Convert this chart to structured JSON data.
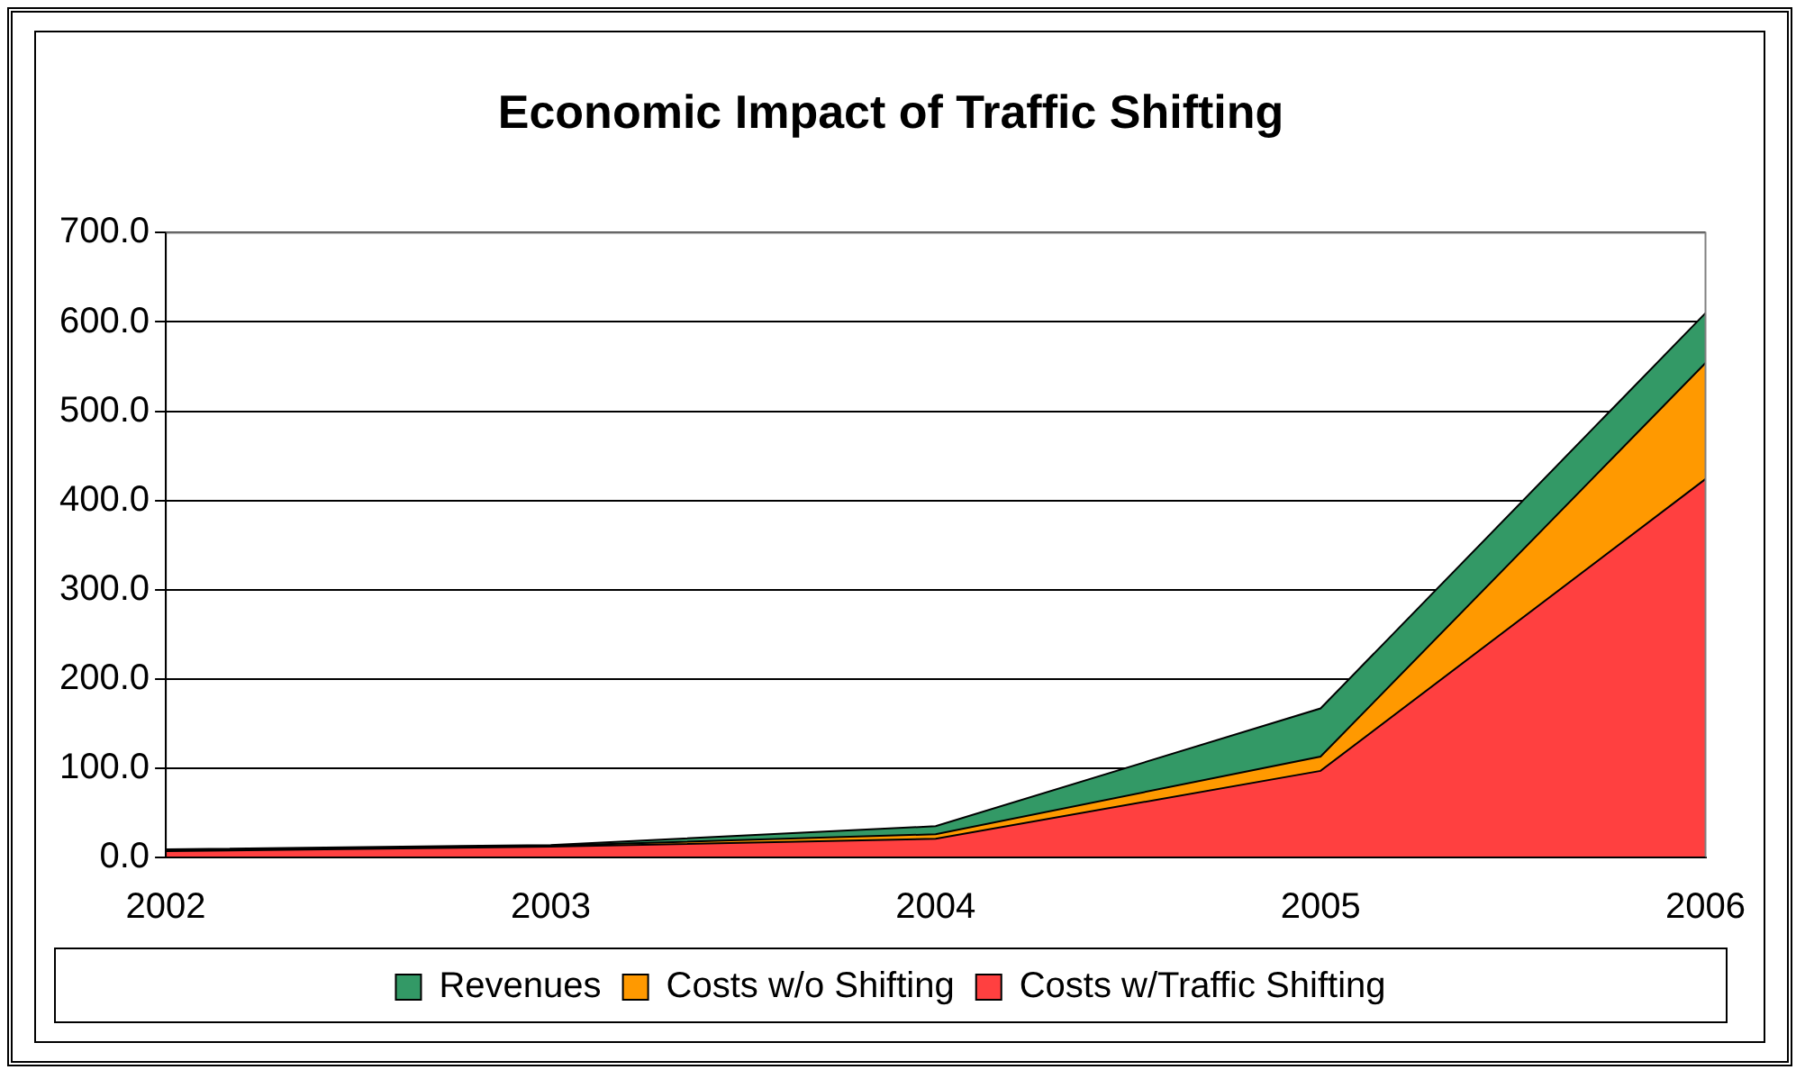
{
  "chart_data": {
    "type": "area",
    "title": "Economic Impact of Traffic Shifting",
    "categories": [
      "2002",
      "2003",
      "2004",
      "2005",
      "2006"
    ],
    "series": [
      {
        "name": "Revenues",
        "color": "#339966",
        "values": [
          9,
          14,
          35,
          167,
          610
        ]
      },
      {
        "name": "Costs w/o Shifting",
        "color": "#ff9900",
        "values": [
          8,
          13,
          26,
          113,
          554
        ]
      },
      {
        "name": "Costs w/Traffic Shifting",
        "color": "#ff4040",
        "values": [
          7,
          12,
          21,
          97,
          424
        ]
      }
    ],
    "ylim": [
      0,
      700
    ],
    "yticks": [
      {
        "value": 0,
        "label": "0.0"
      },
      {
        "value": 100,
        "label": "100.0"
      },
      {
        "value": 200,
        "label": "200.0"
      },
      {
        "value": 300,
        "label": "300.0"
      },
      {
        "value": 400,
        "label": "400.0"
      },
      {
        "value": 500,
        "label": "500.0"
      },
      {
        "value": 600,
        "label": "600.0"
      },
      {
        "value": 700,
        "label": "700.0"
      }
    ],
    "grid": "y",
    "legend": "bottom"
  }
}
